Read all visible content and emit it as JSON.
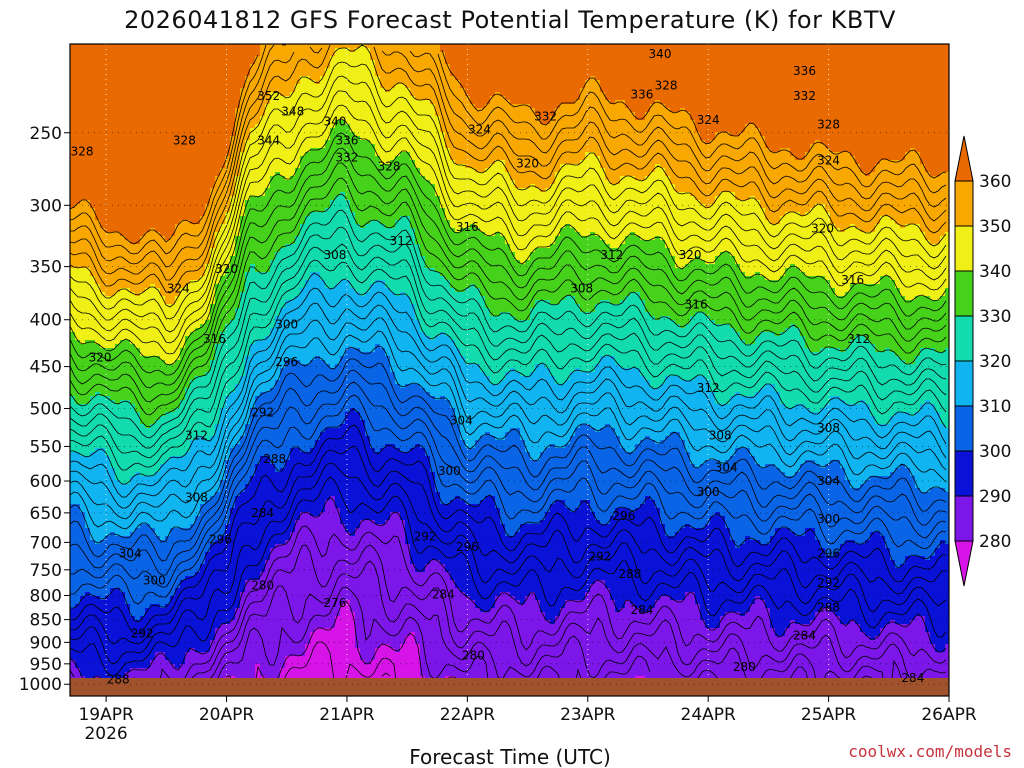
{
  "chart_data": {
    "type": "heatmap",
    "title": "2026041812 GFS Forecast Potential Temperature (K) for KBTV",
    "xlabel": "Forecast Time (UTC)",
    "x_ticks": [
      {
        "label": "19APR",
        "sublabel": "2026",
        "t": 0
      },
      {
        "label": "20APR",
        "sublabel": "",
        "t": 1
      },
      {
        "label": "21APR",
        "sublabel": "",
        "t": 2
      },
      {
        "label": "22APR",
        "sublabel": "",
        "t": 3
      },
      {
        "label": "23APR",
        "sublabel": "",
        "t": 4
      },
      {
        "label": "24APR",
        "sublabel": "",
        "t": 5
      },
      {
        "label": "25APR",
        "sublabel": "",
        "t": 6
      },
      {
        "label": "26APR",
        "sublabel": "",
        "t": 7
      }
    ],
    "x_range_days": [
      -0.3,
      7.0
    ],
    "y_axis": {
      "scale": "log-pressure",
      "reversed": true,
      "range_hpa": [
        1030,
        200
      ],
      "ticks": [
        250,
        300,
        350,
        400,
        450,
        500,
        550,
        600,
        650,
        700,
        750,
        800,
        850,
        900,
        950,
        1000
      ]
    },
    "colorbar": {
      "levels": [
        280,
        290,
        300,
        310,
        320,
        330,
        340,
        350,
        360
      ],
      "colors": [
        "#d714e8",
        "#7d16e8",
        "#0a12d8",
        "#0a64e6",
        "#10b4f0",
        "#12dcae",
        "#46d21a",
        "#f0f016",
        "#f8a800",
        "#e86a00"
      ],
      "extend": "both"
    },
    "profiles": [
      {
        "t": -0.3,
        "theta_sfc": 288,
        "lapse": 1.05
      },
      {
        "t": 0.2,
        "theta_sfc": 289,
        "lapse": 1.15
      },
      {
        "t": 0.5,
        "theta_sfc": 287,
        "lapse": 1.25
      },
      {
        "t": 0.85,
        "theta_sfc": 283,
        "lapse": 1.15
      },
      {
        "t": 1.2,
        "theta_sfc": 279,
        "lapse": 0.75
      },
      {
        "t": 1.6,
        "theta_sfc": 277,
        "lapse": 0.6
      },
      {
        "t": 2.0,
        "theta_sfc": 276,
        "lapse": 0.55
      },
      {
        "t": 2.5,
        "theta_sfc": 278,
        "lapse": 0.6
      },
      {
        "t": 3.0,
        "theta_sfc": 281,
        "lapse": 0.8
      },
      {
        "t": 3.5,
        "theta_sfc": 282,
        "lapse": 0.85
      },
      {
        "t": 4.0,
        "theta_sfc": 281,
        "lapse": 0.8
      },
      {
        "t": 4.5,
        "theta_sfc": 281,
        "lapse": 0.85
      },
      {
        "t": 5.0,
        "theta_sfc": 282,
        "lapse": 0.9
      },
      {
        "t": 5.5,
        "theta_sfc": 282,
        "lapse": 0.95
      },
      {
        "t": 6.0,
        "theta_sfc": 282,
        "lapse": 1.0
      },
      {
        "t": 6.5,
        "theta_sfc": 283,
        "lapse": 1.0
      },
      {
        "t": 7.0,
        "theta_sfc": 284,
        "lapse": 1.0
      }
    ],
    "contour_labels": [
      {
        "text": "328",
        "t": -0.2,
        "p": 262
      },
      {
        "text": "328",
        "t": 0.65,
        "p": 255
      },
      {
        "text": "324",
        "t": 0.6,
        "p": 370
      },
      {
        "text": "320",
        "t": -0.05,
        "p": 440
      },
      {
        "text": "320",
        "t": 1.0,
        "p": 352
      },
      {
        "text": "316",
        "t": 0.9,
        "p": 420
      },
      {
        "text": "312",
        "t": 0.75,
        "p": 535
      },
      {
        "text": "308",
        "t": 0.75,
        "p": 625
      },
      {
        "text": "304",
        "t": 0.2,
        "p": 720
      },
      {
        "text": "300",
        "t": 0.4,
        "p": 770
      },
      {
        "text": "296",
        "t": 0.95,
        "p": 695
      },
      {
        "text": "292",
        "t": 0.3,
        "p": 880
      },
      {
        "text": "288",
        "t": 0.1,
        "p": 988
      },
      {
        "text": "352",
        "t": 1.35,
        "p": 228
      },
      {
        "text": "348",
        "t": 1.55,
        "p": 237
      },
      {
        "text": "344",
        "t": 1.35,
        "p": 255
      },
      {
        "text": "340",
        "t": 1.9,
        "p": 243
      },
      {
        "text": "336",
        "t": 2.0,
        "p": 255
      },
      {
        "text": "332",
        "t": 2.0,
        "p": 266
      },
      {
        "text": "328",
        "t": 2.35,
        "p": 272
      },
      {
        "text": "324",
        "t": 3.1,
        "p": 248
      },
      {
        "text": "332",
        "t": 3.65,
        "p": 240
      },
      {
        "text": "336",
        "t": 4.45,
        "p": 227
      },
      {
        "text": "328",
        "t": 4.65,
        "p": 222
      },
      {
        "text": "340",
        "t": 4.6,
        "p": 205
      },
      {
        "text": "324",
        "t": 5.0,
        "p": 242
      },
      {
        "text": "336",
        "t": 5.8,
        "p": 214
      },
      {
        "text": "332",
        "t": 5.8,
        "p": 228
      },
      {
        "text": "328",
        "t": 6.0,
        "p": 245
      },
      {
        "text": "324",
        "t": 6.0,
        "p": 268
      },
      {
        "text": "320",
        "t": 3.5,
        "p": 270
      },
      {
        "text": "316",
        "t": 3.0,
        "p": 317
      },
      {
        "text": "312",
        "t": 2.45,
        "p": 328
      },
      {
        "text": "308",
        "t": 1.9,
        "p": 340
      },
      {
        "text": "312",
        "t": 4.2,
        "p": 340
      },
      {
        "text": "308",
        "t": 3.95,
        "p": 370
      },
      {
        "text": "320",
        "t": 4.85,
        "p": 340
      },
      {
        "text": "316",
        "t": 4.9,
        "p": 385
      },
      {
        "text": "320",
        "t": 5.95,
        "p": 318
      },
      {
        "text": "316",
        "t": 6.2,
        "p": 362
      },
      {
        "text": "312",
        "t": 6.25,
        "p": 420
      },
      {
        "text": "312",
        "t": 5.0,
        "p": 475
      },
      {
        "text": "308",
        "t": 5.1,
        "p": 535
      },
      {
        "text": "308",
        "t": 6.0,
        "p": 525
      },
      {
        "text": "304",
        "t": 5.15,
        "p": 580
      },
      {
        "text": "304",
        "t": 6.0,
        "p": 600
      },
      {
        "text": "300",
        "t": 5.0,
        "p": 617
      },
      {
        "text": "300",
        "t": 6.0,
        "p": 660
      },
      {
        "text": "296",
        "t": 6.0,
        "p": 720
      },
      {
        "text": "292",
        "t": 6.0,
        "p": 775
      },
      {
        "text": "288",
        "t": 6.0,
        "p": 825
      },
      {
        "text": "284",
        "t": 5.8,
        "p": 885
      },
      {
        "text": "280",
        "t": 5.3,
        "p": 958
      },
      {
        "text": "284",
        "t": 6.7,
        "p": 985
      },
      {
        "text": "300",
        "t": 1.5,
        "p": 405
      },
      {
        "text": "296",
        "t": 1.5,
        "p": 445
      },
      {
        "text": "292",
        "t": 1.3,
        "p": 505
      },
      {
        "text": "288",
        "t": 1.4,
        "p": 568
      },
      {
        "text": "284",
        "t": 1.3,
        "p": 650
      },
      {
        "text": "280",
        "t": 1.3,
        "p": 780
      },
      {
        "text": "276",
        "t": 1.9,
        "p": 815
      },
      {
        "text": "304",
        "t": 2.95,
        "p": 515
      },
      {
        "text": "300",
        "t": 2.85,
        "p": 585
      },
      {
        "text": "296",
        "t": 4.3,
        "p": 655
      },
      {
        "text": "292",
        "t": 2.65,
        "p": 690
      },
      {
        "text": "296",
        "t": 3.0,
        "p": 708
      },
      {
        "text": "292",
        "t": 4.1,
        "p": 725
      },
      {
        "text": "288",
        "t": 4.35,
        "p": 758
      },
      {
        "text": "284",
        "t": 2.8,
        "p": 798
      },
      {
        "text": "284",
        "t": 4.45,
        "p": 830
      },
      {
        "text": "280",
        "t": 3.05,
        "p": 930
      }
    ]
  },
  "credit": "coolwx.com/models"
}
